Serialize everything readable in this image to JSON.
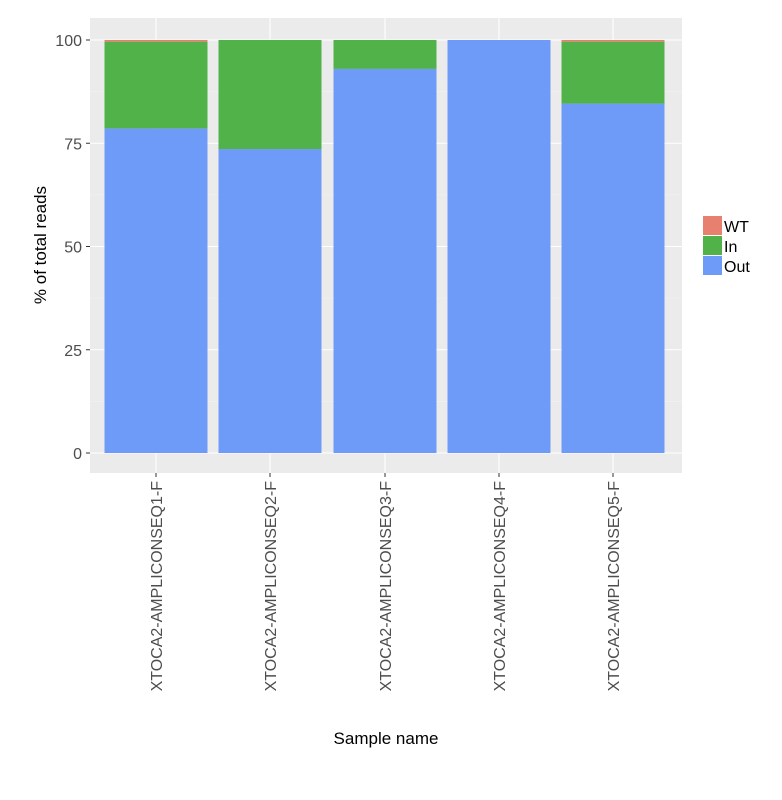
{
  "chart_data": {
    "type": "bar",
    "stacked": true,
    "categories": [
      "XTOCA2-AMPLICONSEQ1-F",
      "XTOCA2-AMPLICONSEQ2-F",
      "XTOCA2-AMPLICONSEQ3-F",
      "XTOCA2-AMPLICONSEQ4-F",
      "XTOCA2-AMPLICONSEQ5-F"
    ],
    "series": [
      {
        "name": "Out",
        "color": "#6f9bf8",
        "values": [
          78.6,
          73.6,
          93.0,
          100.0,
          84.6
        ]
      },
      {
        "name": "In",
        "color": "#52b24a",
        "values": [
          21.0,
          26.4,
          7.0,
          0.0,
          15.0
        ]
      },
      {
        "name": "WT",
        "color": "#e8806f",
        "values": [
          0.4,
          0.0,
          0.0,
          0.0,
          0.4
        ]
      }
    ],
    "legend_order": [
      "WT",
      "In",
      "Out"
    ],
    "legend_position": "right",
    "xlabel": "Sample name",
    "ylabel": "% of total reads",
    "ylim": [
      0,
      100
    ],
    "yticks": [
      0,
      25,
      50,
      75,
      100
    ],
    "grid": true,
    "panel_background": "#ebebeb"
  }
}
